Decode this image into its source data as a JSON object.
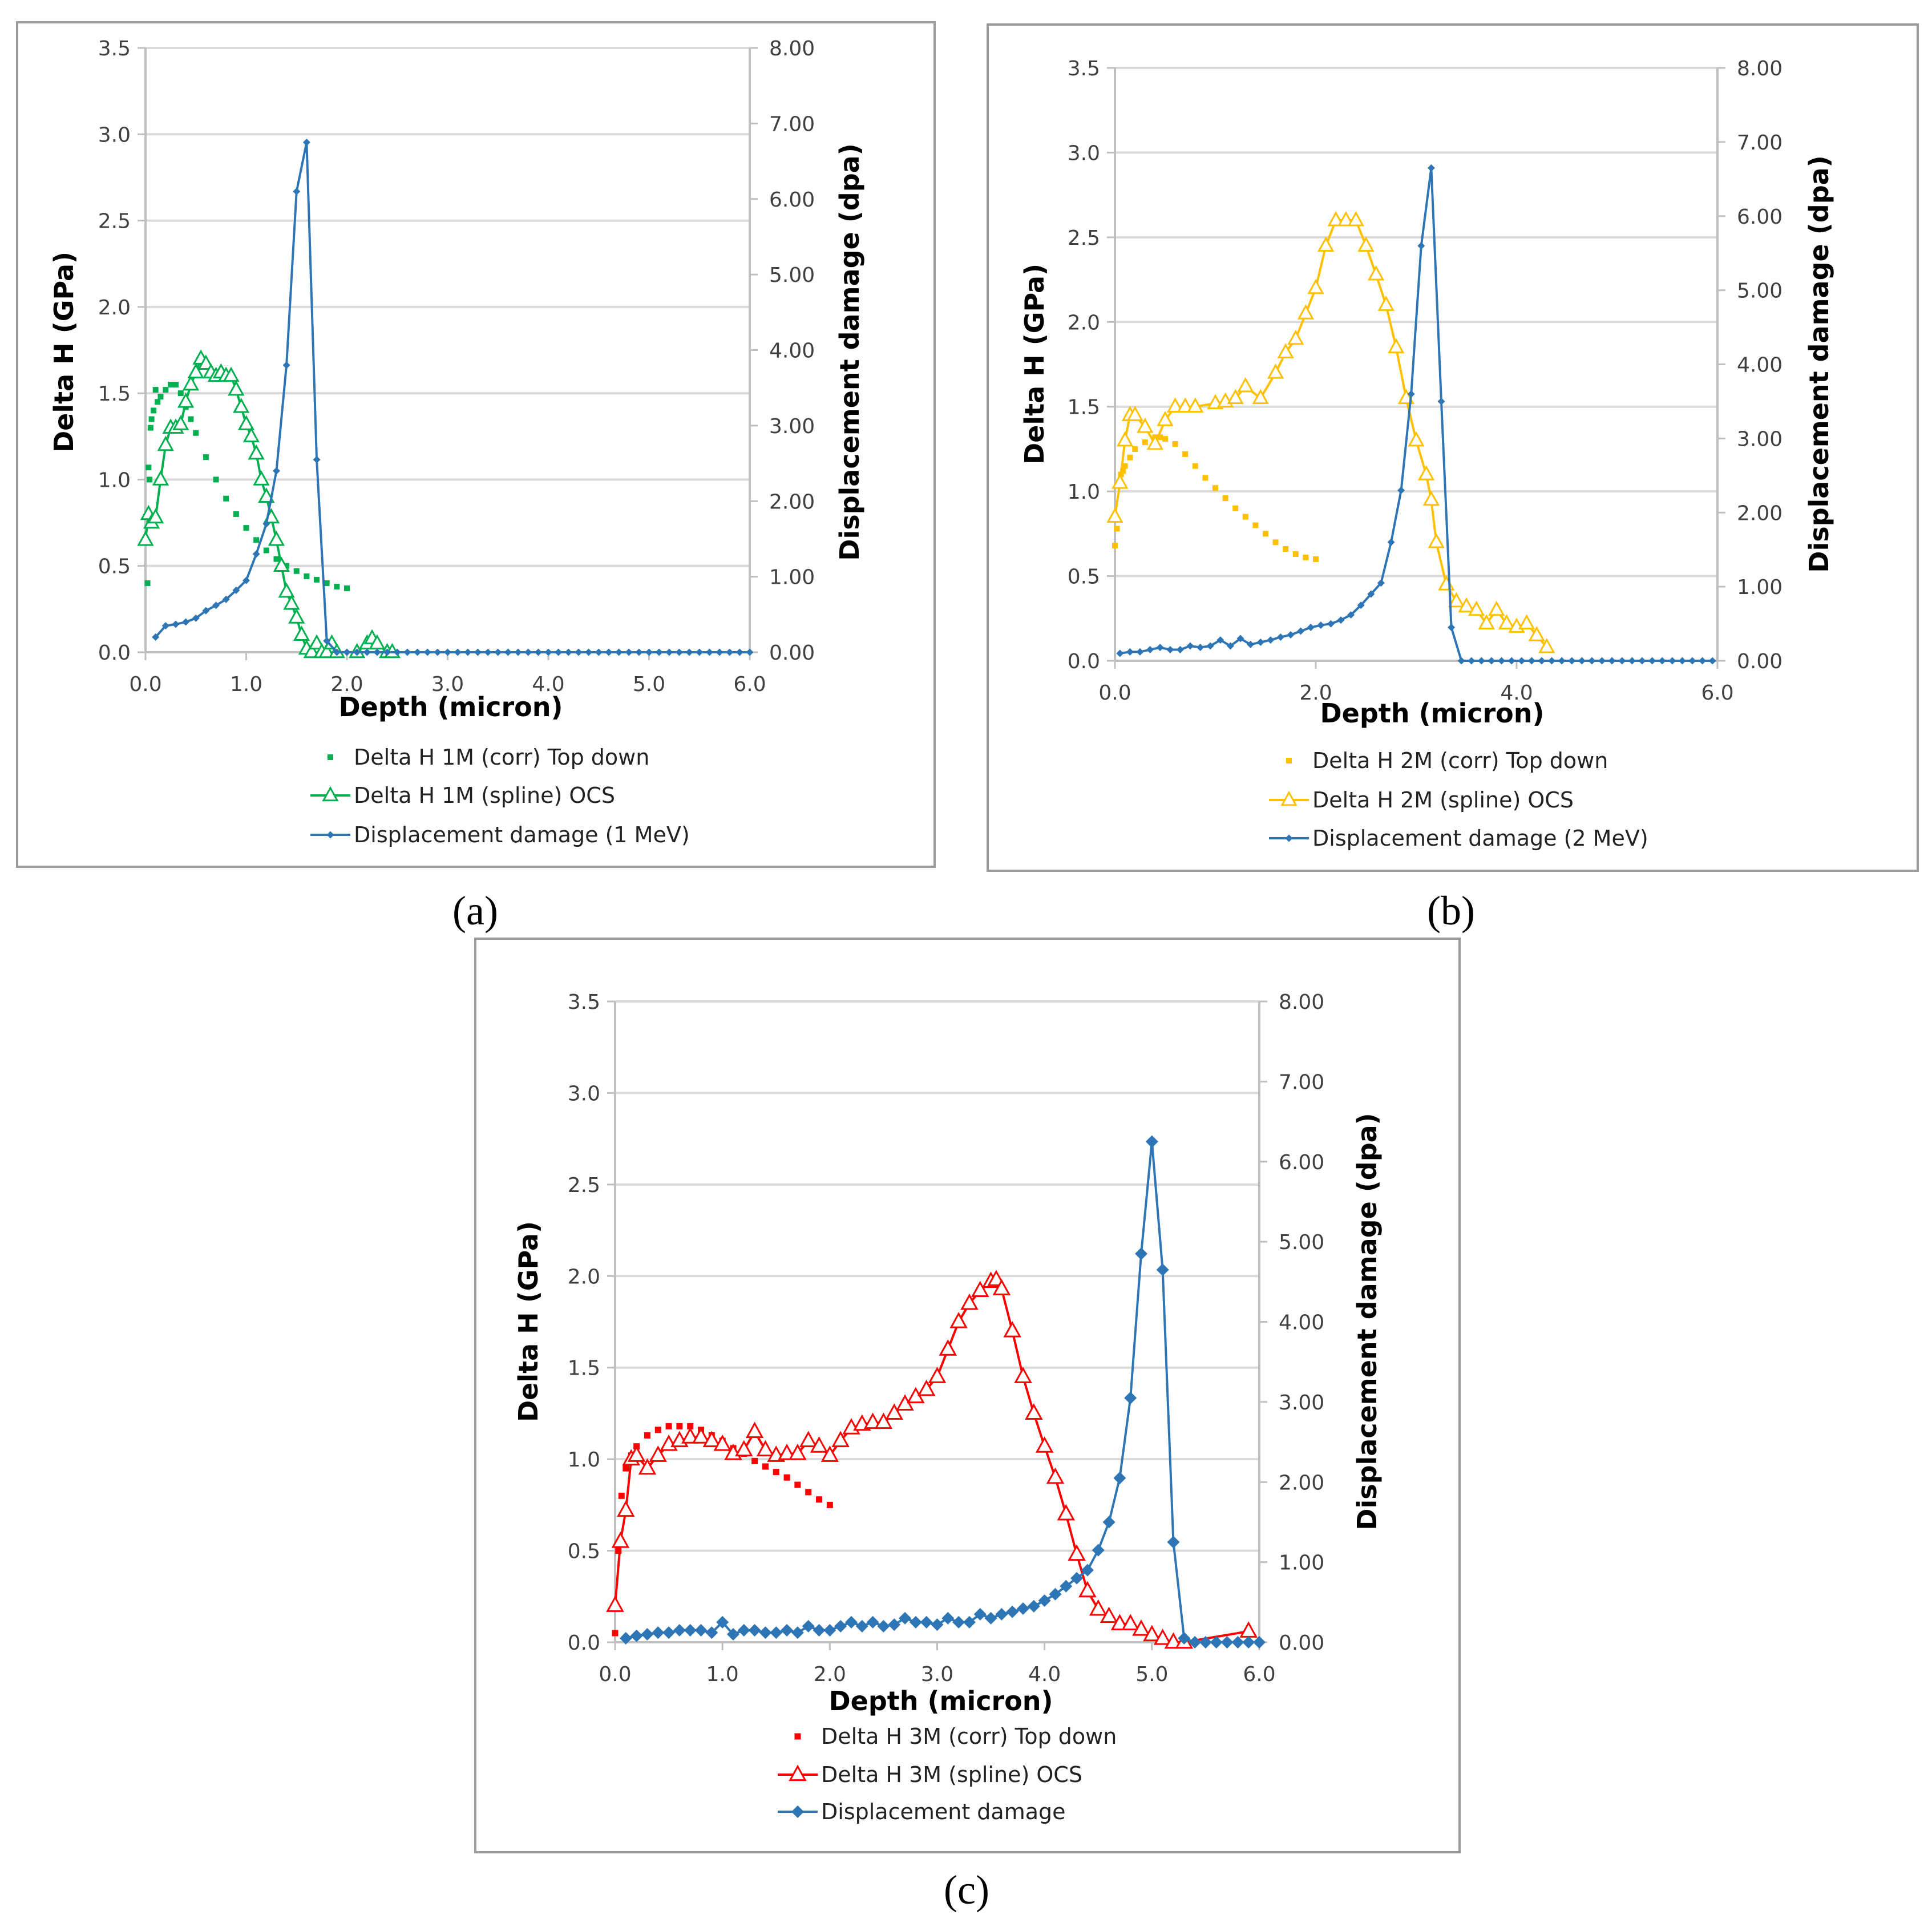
{
  "chart_data": [
    {
      "id": "a",
      "type": "scatter",
      "panel_label": "(a)",
      "xlabel": "Depth (micron)",
      "ylabel": "Delta H (GPa)",
      "y2label": "Displacement damage (dpa)",
      "xlim": [
        0,
        6
      ],
      "ylim": [
        0,
        3.5
      ],
      "y2lim": [
        0,
        8
      ],
      "x_ticks": [
        "0.0",
        "1.0",
        "2.0",
        "3.0",
        "4.0",
        "5.0",
        "6.0"
      ],
      "x_tick_values": [
        0,
        1,
        2,
        3,
        4,
        5,
        6
      ],
      "y_ticks": [
        "0.0",
        "0.5",
        "1.0",
        "1.5",
        "2.0",
        "2.5",
        "3.0",
        "3.5"
      ],
      "y2_ticks": [
        "0.00",
        "1.00",
        "2.00",
        "3.00",
        "4.00",
        "5.00",
        "6.00",
        "7.00",
        "8.00"
      ],
      "grid": true,
      "legend_position": "bottom",
      "series": [
        {
          "name": "Delta H 1M (corr) Top down",
          "axis": "left",
          "marker": "square",
          "line": false,
          "color": "#00b050",
          "x": [
            0.02,
            0.03,
            0.04,
            0.05,
            0.06,
            0.08,
            0.1,
            0.12,
            0.15,
            0.2,
            0.25,
            0.3,
            0.35,
            0.4,
            0.45,
            0.5,
            0.6,
            0.7,
            0.8,
            0.9,
            1.0,
            1.1,
            1.2,
            1.3,
            1.4,
            1.5,
            1.6,
            1.7,
            1.8,
            1.9,
            2.0
          ],
          "y": [
            0.4,
            1.07,
            1.0,
            1.3,
            1.35,
            1.4,
            1.52,
            1.45,
            1.48,
            1.52,
            1.55,
            1.55,
            1.5,
            1.42,
            1.35,
            1.27,
            1.13,
            1.0,
            0.89,
            0.8,
            0.72,
            0.65,
            0.59,
            0.54,
            0.5,
            0.47,
            0.44,
            0.42,
            0.4,
            0.38,
            0.37
          ]
        },
        {
          "name": "Delta H 1M (spline) OCS",
          "axis": "left",
          "marker": "triangle",
          "line": true,
          "color": "#00b050",
          "x": [
            0,
            0.03,
            0.06,
            0.1,
            0.15,
            0.2,
            0.25,
            0.3,
            0.35,
            0.4,
            0.45,
            0.5,
            0.55,
            0.6,
            0.65,
            0.7,
            0.75,
            0.8,
            0.85,
            0.9,
            0.95,
            1.0,
            1.05,
            1.1,
            1.15,
            1.2,
            1.25,
            1.3,
            1.35,
            1.4,
            1.45,
            1.5,
            1.55,
            1.6,
            1.65,
            1.7,
            1.75,
            1.8,
            1.85,
            1.9,
            2.1,
            2.2,
            2.25,
            2.3,
            2.4,
            2.45
          ],
          "y": [
            0.65,
            0.8,
            0.75,
            0.78,
            1.0,
            1.2,
            1.3,
            1.3,
            1.32,
            1.45,
            1.55,
            1.62,
            1.7,
            1.67,
            1.62,
            1.6,
            1.62,
            1.6,
            1.6,
            1.52,
            1.42,
            1.32,
            1.25,
            1.15,
            1.0,
            0.9,
            0.78,
            0.65,
            0.5,
            0.35,
            0.28,
            0.2,
            0.1,
            0.02,
            0.0,
            0.05,
            0.0,
            0.0,
            0.05,
            0.0,
            0.0,
            0.05,
            0.08,
            0.05,
            0.0,
            0.0
          ]
        },
        {
          "name": "Displacement damage (1 MeV)",
          "axis": "right",
          "marker": "diamond",
          "line": true,
          "color": "#2e75b6",
          "x": [
            0.1,
            0.2,
            0.3,
            0.4,
            0.5,
            0.6,
            0.7,
            0.8,
            0.9,
            1.0,
            1.1,
            1.2,
            1.3,
            1.4,
            1.5,
            1.6,
            1.7,
            1.8,
            1.9,
            2.0,
            2.1,
            2.2,
            2.3,
            2.4,
            2.5,
            2.6,
            2.7,
            2.8,
            2.9,
            3.0,
            3.1,
            3.2,
            3.3,
            3.4,
            3.5,
            3.6,
            3.7,
            3.8,
            3.9,
            4.0,
            4.1,
            4.2,
            4.3,
            4.4,
            4.5,
            4.6,
            4.7,
            4.8,
            4.9,
            5.0,
            5.1,
            5.2,
            5.3,
            5.4,
            5.5,
            5.6,
            5.7,
            5.8,
            5.9,
            6.0
          ],
          "y": [
            0.2,
            0.35,
            0.37,
            0.4,
            0.45,
            0.55,
            0.62,
            0.7,
            0.82,
            0.95,
            1.3,
            1.7,
            2.4,
            3.8,
            6.1,
            6.75,
            2.55,
            0.15,
            0,
            0,
            0,
            0,
            0,
            0,
            0,
            0,
            0,
            0,
            0,
            0,
            0,
            0,
            0,
            0,
            0,
            0,
            0,
            0,
            0,
            0,
            0,
            0,
            0,
            0,
            0,
            0,
            0,
            0,
            0,
            0,
            0,
            0,
            0,
            0,
            0,
            0,
            0,
            0,
            0,
            0
          ]
        }
      ]
    },
    {
      "id": "b",
      "type": "scatter",
      "panel_label": "(b)",
      "xlabel": "Depth (micron)",
      "ylabel": "Delta H (GPa)",
      "y2label": "Displacement damage (dpa)",
      "xlim": [
        0,
        6
      ],
      "ylim": [
        0,
        3.5
      ],
      "y2lim": [
        0,
        8
      ],
      "x_ticks": [
        "0.0",
        "2.0",
        "4.0",
        "6.0"
      ],
      "x_tick_values": [
        0,
        2,
        4,
        6
      ],
      "y_ticks": [
        "0.0",
        "0.5",
        "1.0",
        "1.5",
        "2.0",
        "2.5",
        "3.0",
        "3.5"
      ],
      "y2_ticks": [
        "0.00",
        "1.00",
        "2.00",
        "3.00",
        "4.00",
        "5.00",
        "6.00",
        "7.00",
        "8.00"
      ],
      "grid": true,
      "legend_position": "bottom",
      "series": [
        {
          "name": "Delta H 2M (corr)  Top down",
          "axis": "left",
          "marker": "square",
          "line": false,
          "color": "#ffc000",
          "x": [
            0.0,
            0.02,
            0.04,
            0.06,
            0.08,
            0.1,
            0.15,
            0.2,
            0.3,
            0.4,
            0.45,
            0.5,
            0.6,
            0.7,
            0.8,
            0.9,
            1.0,
            1.1,
            1.2,
            1.3,
            1.4,
            1.5,
            1.6,
            1.7,
            1.8,
            1.9,
            2.0
          ],
          "y": [
            0.68,
            0.78,
            1.05,
            1.1,
            1.12,
            1.15,
            1.2,
            1.25,
            1.29,
            1.32,
            1.32,
            1.31,
            1.28,
            1.22,
            1.15,
            1.08,
            1.02,
            0.96,
            0.9,
            0.85,
            0.8,
            0.75,
            0.7,
            0.66,
            0.63,
            0.61,
            0.6
          ]
        },
        {
          "name": "Delta H 2M (spline)  OCS",
          "axis": "left",
          "marker": "triangle",
          "line": true,
          "color": "#ffc000",
          "x": [
            0,
            0.05,
            0.1,
            0.15,
            0.2,
            0.3,
            0.4,
            0.5,
            0.6,
            0.7,
            0.8,
            1.0,
            1.1,
            1.2,
            1.3,
            1.45,
            1.6,
            1.7,
            1.8,
            1.9,
            2.0,
            2.1,
            2.2,
            2.3,
            2.4,
            2.5,
            2.6,
            2.7,
            2.8,
            2.9,
            3.0,
            3.1,
            3.15,
            3.2,
            3.3,
            3.4,
            3.5,
            3.6,
            3.7,
            3.8,
            3.9,
            4.0,
            4.1,
            4.2,
            4.3
          ],
          "y": [
            0.85,
            1.05,
            1.3,
            1.45,
            1.45,
            1.38,
            1.28,
            1.42,
            1.5,
            1.5,
            1.5,
            1.52,
            1.53,
            1.55,
            1.62,
            1.55,
            1.7,
            1.82,
            1.9,
            2.05,
            2.2,
            2.45,
            2.6,
            2.6,
            2.6,
            2.45,
            2.28,
            2.1,
            1.85,
            1.55,
            1.3,
            1.1,
            0.95,
            0.7,
            0.45,
            0.35,
            0.32,
            0.3,
            0.22,
            0.3,
            0.22,
            0.2,
            0.22,
            0.15,
            0.08
          ]
        },
        {
          "name": "Displacement damage (2 MeV)",
          "axis": "right",
          "marker": "diamond",
          "line": true,
          "color": "#2e75b6",
          "x": [
            0.05,
            0.15,
            0.25,
            0.35,
            0.45,
            0.55,
            0.65,
            0.75,
            0.85,
            0.95,
            1.05,
            1.15,
            1.25,
            1.35,
            1.45,
            1.55,
            1.65,
            1.75,
            1.85,
            1.95,
            2.05,
            2.15,
            2.25,
            2.35,
            2.45,
            2.55,
            2.65,
            2.75,
            2.85,
            2.95,
            3.05,
            3.15,
            3.25,
            3.35,
            3.45,
            3.55,
            3.65,
            3.75,
            3.85,
            3.95,
            4.05,
            4.15,
            4.25,
            4.35,
            4.45,
            4.55,
            4.65,
            4.75,
            4.85,
            4.95,
            5.05,
            5.15,
            5.25,
            5.35,
            5.45,
            5.55,
            5.65,
            5.75,
            5.85,
            5.95
          ],
          "y": [
            0.1,
            0.12,
            0.12,
            0.15,
            0.18,
            0.15,
            0.15,
            0.2,
            0.18,
            0.2,
            0.28,
            0.2,
            0.3,
            0.22,
            0.25,
            0.28,
            0.32,
            0.35,
            0.4,
            0.45,
            0.48,
            0.5,
            0.55,
            0.62,
            0.75,
            0.9,
            1.05,
            1.6,
            2.3,
            3.6,
            5.6,
            6.65,
            3.5,
            0.45,
            0,
            0,
            0,
            0,
            0,
            0,
            0,
            0,
            0,
            0,
            0,
            0,
            0,
            0,
            0,
            0,
            0,
            0,
            0,
            0,
            0,
            0,
            0,
            0,
            0,
            0
          ]
        }
      ]
    },
    {
      "id": "c",
      "type": "scatter",
      "panel_label": "(c)",
      "xlabel": "Depth (micron)",
      "ylabel": "Delta H (GPa)",
      "y2label": "Displacement damage (dpa)",
      "xlim": [
        0,
        6
      ],
      "ylim": [
        0,
        3.5
      ],
      "y2lim": [
        0,
        8
      ],
      "x_ticks": [
        "0.0",
        "1.0",
        "2.0",
        "3.0",
        "4.0",
        "5.0",
        "6.0"
      ],
      "x_tick_values": [
        0,
        1,
        2,
        3,
        4,
        5,
        6
      ],
      "y_ticks": [
        "0.0",
        "0.5",
        "1.0",
        "1.5",
        "2.0",
        "2.5",
        "3.0",
        "3.5"
      ],
      "y2_ticks": [
        "0.00",
        "1.00",
        "2.00",
        "3.00",
        "4.00",
        "5.00",
        "6.00",
        "7.00",
        "8.00"
      ],
      "grid": true,
      "legend_position": "bottom",
      "series": [
        {
          "name": "Delta H 3M (corr) Top down",
          "axis": "left",
          "marker": "square",
          "line": false,
          "color": "#ff0000",
          "x": [
            0.0,
            0.03,
            0.06,
            0.1,
            0.15,
            0.2,
            0.3,
            0.4,
            0.5,
            0.6,
            0.7,
            0.8,
            0.9,
            1.0,
            1.1,
            1.2,
            1.3,
            1.4,
            1.5,
            1.6,
            1.7,
            1.8,
            1.9,
            2.0
          ],
          "y": [
            0.05,
            0.5,
            0.8,
            0.95,
            1.02,
            1.07,
            1.13,
            1.16,
            1.18,
            1.18,
            1.18,
            1.16,
            1.13,
            1.1,
            1.06,
            1.03,
            0.99,
            0.96,
            0.93,
            0.9,
            0.86,
            0.82,
            0.78,
            0.75
          ]
        },
        {
          "name": "Delta H 3M (spline) OCS",
          "axis": "left",
          "marker": "triangle",
          "line": true,
          "color": "#ff0000",
          "x": [
            0,
            0.05,
            0.1,
            0.15,
            0.2,
            0.3,
            0.4,
            0.5,
            0.6,
            0.7,
            0.8,
            0.9,
            1.0,
            1.1,
            1.2,
            1.3,
            1.4,
            1.5,
            1.6,
            1.7,
            1.8,
            1.9,
            2.0,
            2.1,
            2.2,
            2.3,
            2.4,
            2.5,
            2.6,
            2.7,
            2.8,
            2.9,
            3.0,
            3.1,
            3.2,
            3.3,
            3.4,
            3.5,
            3.55,
            3.6,
            3.7,
            3.8,
            3.9,
            4.0,
            4.1,
            4.2,
            4.3,
            4.4,
            4.5,
            4.6,
            4.7,
            4.8,
            4.9,
            5.0,
            5.1,
            5.2,
            5.3,
            5.9
          ],
          "y": [
            0.2,
            0.55,
            0.72,
            1.0,
            1.02,
            0.95,
            1.02,
            1.08,
            1.1,
            1.12,
            1.12,
            1.1,
            1.08,
            1.03,
            1.05,
            1.15,
            1.05,
            1.02,
            1.03,
            1.03,
            1.1,
            1.07,
            1.02,
            1.1,
            1.17,
            1.19,
            1.2,
            1.2,
            1.25,
            1.3,
            1.34,
            1.38,
            1.45,
            1.6,
            1.75,
            1.85,
            1.92,
            1.97,
            1.98,
            1.93,
            1.7,
            1.45,
            1.25,
            1.07,
            0.9,
            0.7,
            0.48,
            0.28,
            0.18,
            0.14,
            0.1,
            0.1,
            0.07,
            0.04,
            0.02,
            0.0,
            0.0,
            0.06
          ]
        },
        {
          "name": "Displacement damage",
          "axis": "right",
          "marker": "diamond",
          "line": true,
          "color": "#2e75b6",
          "x": [
            0.1,
            0.2,
            0.3,
            0.4,
            0.5,
            0.6,
            0.7,
            0.8,
            0.9,
            1.0,
            1.1,
            1.2,
            1.3,
            1.4,
            1.5,
            1.6,
            1.7,
            1.8,
            1.9,
            2.0,
            2.1,
            2.2,
            2.3,
            2.4,
            2.5,
            2.6,
            2.7,
            2.8,
            2.9,
            3.0,
            3.1,
            3.2,
            3.3,
            3.4,
            3.5,
            3.6,
            3.7,
            3.8,
            3.9,
            4.0,
            4.1,
            4.2,
            4.3,
            4.4,
            4.5,
            4.6,
            4.7,
            4.8,
            4.9,
            5.0,
            5.1,
            5.2,
            5.3,
            5.4,
            5.5,
            5.6,
            5.7,
            5.8,
            5.9,
            6.0
          ],
          "y": [
            0.05,
            0.08,
            0.1,
            0.12,
            0.12,
            0.15,
            0.15,
            0.15,
            0.12,
            0.25,
            0.1,
            0.15,
            0.15,
            0.12,
            0.12,
            0.15,
            0.12,
            0.2,
            0.15,
            0.15,
            0.2,
            0.25,
            0.2,
            0.25,
            0.2,
            0.22,
            0.3,
            0.25,
            0.25,
            0.22,
            0.3,
            0.25,
            0.25,
            0.35,
            0.3,
            0.35,
            0.38,
            0.42,
            0.45,
            0.52,
            0.6,
            0.7,
            0.8,
            0.9,
            1.15,
            1.5,
            2.05,
            3.05,
            4.85,
            6.25,
            4.65,
            1.25,
            0.05,
            0,
            0,
            0,
            0,
            0,
            0,
            0
          ]
        }
      ]
    }
  ]
}
